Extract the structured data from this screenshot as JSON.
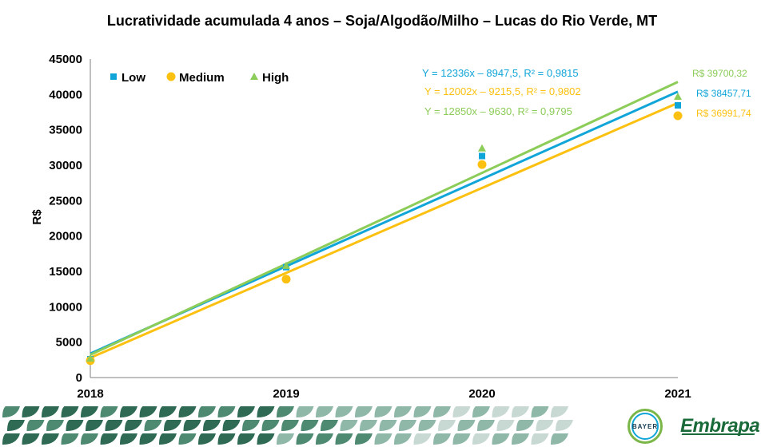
{
  "colors": {
    "low": "#10a5d8",
    "medium": "#fcc110",
    "high": "#8ccc58",
    "low_trend": "#10a5d8",
    "medium_trend": "#fcc110",
    "high_trend": "#8ccc58",
    "footer_tiles": [
      "#2e6a54",
      "#4e8a72",
      "#8fb8a8",
      "#c7d9d2"
    ]
  },
  "logos": {
    "bayer": "BAYER",
    "embrapa": "Embrapa"
  },
  "chart_data": {
    "type": "scatter",
    "title": "Lucratividade acumulada 4 anos – Soja/Algodão/Milho – Lucas do Rio Verde, MT",
    "xlabel": "",
    "ylabel": "R$",
    "x": [
      2018,
      2019,
      2020,
      2021
    ],
    "x_tick_labels": [
      "2018",
      "2019",
      "2020",
      "2021"
    ],
    "ylim": [
      0,
      45000
    ],
    "y_ticks": [
      0,
      5000,
      10000,
      15000,
      20000,
      25000,
      30000,
      35000,
      40000,
      45000
    ],
    "grid": false,
    "legend_position": "top-left",
    "series": [
      {
        "name": "Low",
        "marker": "square",
        "values": [
          2600,
          15600,
          31300,
          38457.71
        ],
        "trend": {
          "slope": 12336,
          "intercept": -8947.5,
          "equation": "Y = 12336x – 8947,5, R² = 0,9815"
        },
        "end_label": "R$ 38457,71"
      },
      {
        "name": "Medium",
        "marker": "circle",
        "values": [
          2400,
          13900,
          30100,
          36991.74
        ],
        "trend": {
          "slope": 12002,
          "intercept": -9215.5,
          "equation": "Y = 12002x – 9215,5, R² = 0,9802"
        },
        "end_label": "R$ 36991,74"
      },
      {
        "name": "High",
        "marker": "triangle",
        "values": [
          2700,
          15800,
          32400,
          39700.32
        ],
        "trend": {
          "slope": 12850,
          "intercept": -9630,
          "equation": "Y = 12850x – 9630, R² = 0,9795"
        },
        "end_label": "R$ 39700,32"
      }
    ]
  }
}
